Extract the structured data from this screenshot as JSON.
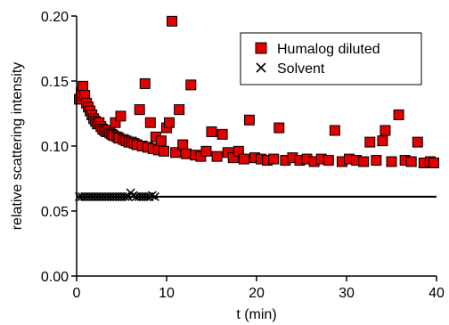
{
  "chart_data": {
    "type": "scatter",
    "title": "",
    "xlabel": "t (min)",
    "ylabel": "relative scattering intensity",
    "xlim": [
      0,
      40
    ],
    "ylim": [
      0,
      0.2
    ],
    "x_ticks": [
      "0",
      "10",
      "20",
      "30",
      "40"
    ],
    "y_ticks": [
      "0.00",
      "0.05",
      "0.10",
      "0.15",
      "0.20"
    ],
    "grid": false,
    "legend_position": "top-right",
    "series": [
      {
        "name": "Humalog diluted",
        "marker": "square",
        "color": "#e00000",
        "edge_color": "#000000",
        "points": [
          [
            0.3,
            0.136
          ],
          [
            0.5,
            0.141
          ],
          [
            0.7,
            0.146
          ],
          [
            0.9,
            0.139
          ],
          [
            1.1,
            0.133
          ],
          [
            1.3,
            0.13
          ],
          [
            1.5,
            0.127
          ],
          [
            1.7,
            0.124
          ],
          [
            1.9,
            0.121
          ],
          [
            2.1,
            0.119
          ],
          [
            2.3,
            0.117
          ],
          [
            2.5,
            0.118
          ],
          [
            2.7,
            0.115
          ],
          [
            2.9,
            0.113
          ],
          [
            3.1,
            0.112
          ],
          [
            3.3,
            0.111
          ],
          [
            3.5,
            0.112
          ],
          [
            3.7,
            0.11
          ],
          [
            3.9,
            0.109
          ],
          [
            4.1,
            0.108
          ],
          [
            4.3,
            0.118
          ],
          [
            4.5,
            0.107
          ],
          [
            4.7,
            0.106
          ],
          [
            4.9,
            0.123
          ],
          [
            5.2,
            0.105
          ],
          [
            5.5,
            0.104
          ],
          [
            5.8,
            0.103
          ],
          [
            6.1,
            0.103
          ],
          [
            6.4,
            0.102
          ],
          [
            6.7,
            0.101
          ],
          [
            7.0,
            0.128
          ],
          [
            7.3,
            0.1
          ],
          [
            7.6,
            0.148
          ],
          [
            7.9,
            0.099
          ],
          [
            8.2,
            0.118
          ],
          [
            8.5,
            0.098
          ],
          [
            8.8,
            0.107
          ],
          [
            9.1,
            0.097
          ],
          [
            9.4,
            0.104
          ],
          [
            9.7,
            0.096
          ],
          [
            10.0,
            0.114
          ],
          [
            10.3,
            0.118
          ],
          [
            10.6,
            0.196
          ],
          [
            11.0,
            0.095
          ],
          [
            11.4,
            0.128
          ],
          [
            11.8,
            0.101
          ],
          [
            12.2,
            0.094
          ],
          [
            12.7,
            0.147
          ],
          [
            13.2,
            0.093
          ],
          [
            13.8,
            0.092
          ],
          [
            14.4,
            0.096
          ],
          [
            15.0,
            0.111
          ],
          [
            15.6,
            0.092
          ],
          [
            16.2,
            0.109
          ],
          [
            16.8,
            0.095
          ],
          [
            17.4,
            0.091
          ],
          [
            18.0,
            0.096
          ],
          [
            18.6,
            0.09
          ],
          [
            19.2,
            0.12
          ],
          [
            19.8,
            0.091
          ],
          [
            20.5,
            0.09
          ],
          [
            21.2,
            0.089
          ],
          [
            21.9,
            0.09
          ],
          [
            22.5,
            0.114
          ],
          [
            23.2,
            0.089
          ],
          [
            24.0,
            0.091
          ],
          [
            24.8,
            0.089
          ],
          [
            25.6,
            0.09
          ],
          [
            26.4,
            0.088
          ],
          [
            27.2,
            0.09
          ],
          [
            28.0,
            0.089
          ],
          [
            28.7,
            0.112
          ],
          [
            29.5,
            0.088
          ],
          [
            30.3,
            0.09
          ],
          [
            31.1,
            0.089
          ],
          [
            31.9,
            0.088
          ],
          [
            32.6,
            0.103
          ],
          [
            33.3,
            0.089
          ],
          [
            34.0,
            0.104
          ],
          [
            34.3,
            0.112
          ],
          [
            35.0,
            0.088
          ],
          [
            35.8,
            0.124
          ],
          [
            36.5,
            0.089
          ],
          [
            37.2,
            0.088
          ],
          [
            37.9,
            0.103
          ],
          [
            38.6,
            0.087
          ],
          [
            39.3,
            0.088
          ],
          [
            39.7,
            0.087
          ]
        ]
      },
      {
        "name": "Solvent",
        "marker": "x",
        "color": "#000000",
        "points": [
          [
            0.3,
            0.061
          ],
          [
            0.6,
            0.061
          ],
          [
            0.9,
            0.061
          ],
          [
            1.2,
            0.061
          ],
          [
            1.5,
            0.061
          ],
          [
            1.8,
            0.061
          ],
          [
            2.1,
            0.061
          ],
          [
            2.4,
            0.061
          ],
          [
            2.7,
            0.061
          ],
          [
            3.0,
            0.061
          ],
          [
            3.3,
            0.061
          ],
          [
            3.6,
            0.061
          ],
          [
            3.9,
            0.061
          ],
          [
            4.2,
            0.061
          ],
          [
            4.5,
            0.061
          ],
          [
            4.8,
            0.061
          ],
          [
            5.1,
            0.061
          ],
          [
            5.4,
            0.061
          ],
          [
            5.7,
            0.061
          ],
          [
            6.0,
            0.064
          ],
          [
            6.3,
            0.062
          ],
          [
            6.6,
            0.061
          ],
          [
            6.9,
            0.061
          ],
          [
            7.2,
            0.061
          ],
          [
            7.5,
            0.061
          ],
          [
            7.8,
            0.061
          ],
          [
            8.1,
            0.061
          ],
          [
            8.4,
            0.062
          ],
          [
            8.7,
            0.061
          ]
        ]
      }
    ],
    "baseline": {
      "y": 0.061,
      "x_range": [
        0,
        40
      ],
      "color": "#000000"
    }
  }
}
